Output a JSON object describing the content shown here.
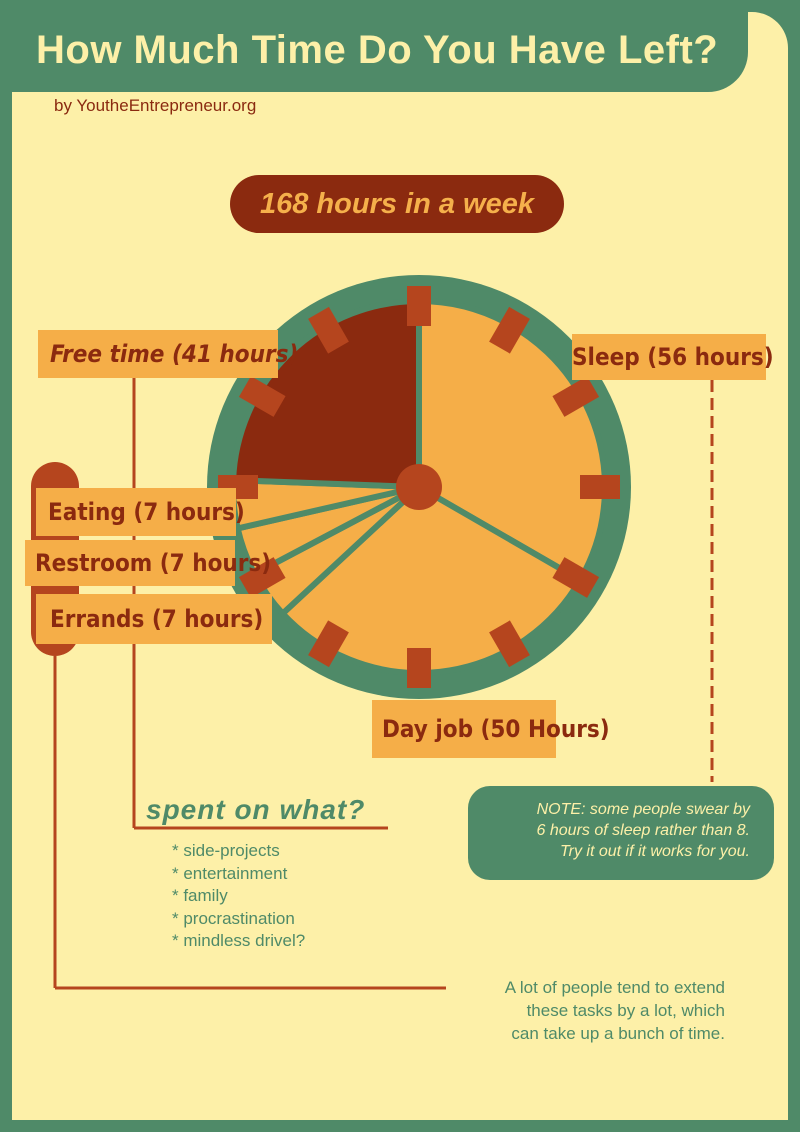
{
  "header": {
    "title": "How Much Time Do You Have Left?",
    "byline": "by YoutheEntrepreneur.org"
  },
  "colors": {
    "green": "#4f8a68",
    "cream": "#fdf0a8",
    "dark_red": "#8b2a0f",
    "orange": "#f5ae48",
    "rust": "#b5451e"
  },
  "week_total": "168 hours in a week",
  "chart_data": {
    "type": "pie",
    "total_hours": 168,
    "slices": [
      {
        "label": "Sleep (56 hours)",
        "value": 56,
        "color": "#f5ae48"
      },
      {
        "label": "Day job (50 Hours)",
        "value": 50,
        "color": "#f5ae48"
      },
      {
        "label": "Errands (7 hours)",
        "value": 7,
        "color": "#f5ae48"
      },
      {
        "label": "Restroom (7 hours)",
        "value": 7,
        "color": "#f5ae48"
      },
      {
        "label": "Eating (7 hours)",
        "value": 7,
        "color": "#f5ae48"
      },
      {
        "label": "Free time (41 hours)",
        "value": 41,
        "color": "#8b2a0f"
      }
    ],
    "clock_face": true
  },
  "labels": {
    "free": "Free time (41 hours)",
    "sleep": "Sleep (56 hours)",
    "eating": "Eating (7 hours)",
    "restroom": "Restroom (7 hours)",
    "errands": "Errands (7 hours)",
    "dayjob": "Day job (50 Hours)"
  },
  "note": {
    "lines": [
      "NOTE: some people swear by",
      "6 hours of sleep rather than 8.",
      "Try it out if it works for you."
    ]
  },
  "spent": {
    "title": "spent on what?",
    "items": [
      "* side-projects",
      "* entertainment",
      "* family",
      "* procrastination",
      "* mindless drivel?"
    ]
  },
  "extend_note": {
    "lines": [
      "A lot of people tend to extend",
      "these tasks by a lot, which",
      "can take up a bunch of time."
    ]
  }
}
